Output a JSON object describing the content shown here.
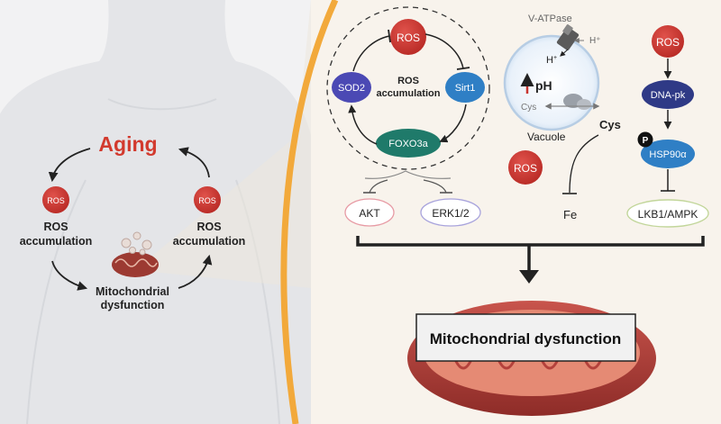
{
  "left": {
    "title": "Aging",
    "ros_badge": "ROS",
    "ros_accumulation_line1": "ROS",
    "ros_accumulation_line2": "accumulation",
    "mito_line1": "Mitochondrial",
    "mito_line2": "dysfunction"
  },
  "sirt_loop": {
    "ros": "ROS",
    "center_line1": "ROS",
    "center_line2": "accumulation",
    "sod2": "SOD2",
    "sirt1": "Sirt1",
    "foxo3a": "FOXO3a",
    "akt": "AKT",
    "erk": "ERK1/2"
  },
  "vacuole": {
    "v_atpase": "V-ATPase",
    "h_plus": "H",
    "ph": "pH",
    "cys_inner": "Cys",
    "cys_outer": "Cys",
    "label": "Vacuole",
    "ros": "ROS",
    "fe": "Fe"
  },
  "dna_pk_path": {
    "ros": "ROS",
    "dna_pk": "DNA-pk",
    "p": "P",
    "hsp90": "HSP90α",
    "lkb1": "LKB1/AMPK"
  },
  "outcome": {
    "label": "Mitochondrial dysfunction"
  },
  "colors": {
    "ros_red": "#c8342f",
    "aging_red": "#d23a2e",
    "orange_arc": "#f2a93b",
    "teal": "#1f7a6a",
    "navy": "#2f3a86",
    "blue": "#3a86c8",
    "purple": "#5a52b8"
  }
}
